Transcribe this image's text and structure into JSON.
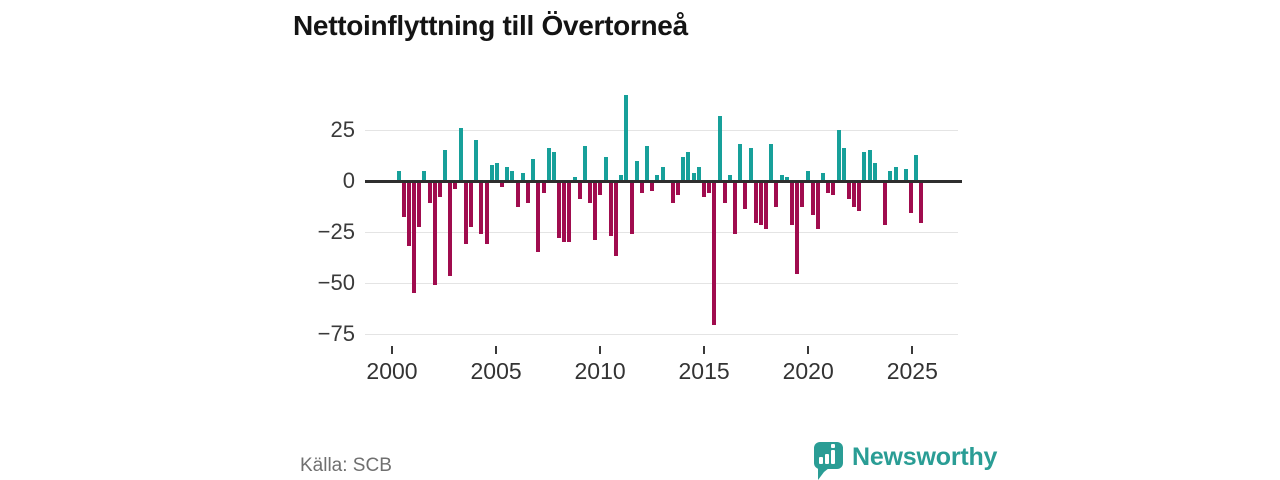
{
  "title": "Nettoinflyttning till Övertorneå",
  "source": "Källa: SCB",
  "branding": {
    "name": "Newsworthy"
  },
  "colors": {
    "positive": "#17a09a",
    "negative": "#a00c4e",
    "axis": "#2e2e2e",
    "grid": "#e4e4e4",
    "title": "#141414",
    "tick_label": "#3a3a3a",
    "source_text": "#6f6f6f",
    "brand": "#2a9d95"
  },
  "chart_data": {
    "type": "bar",
    "title": "Nettoinflyttning till Övertorneå",
    "xlabel": "",
    "ylabel": "",
    "ylim": [
      -75,
      45
    ],
    "yticks": [
      25,
      0,
      -25,
      -50,
      -75
    ],
    "xticks": [
      2000,
      2005,
      2010,
      2015,
      2020,
      2025
    ],
    "grid": true,
    "legend": false,
    "source": "Källa: SCB",
    "categories": [
      "2000 Q1",
      "2000 Q2",
      "2000 Q3",
      "2000 Q4",
      "2001 Q1",
      "2001 Q2",
      "2001 Q3",
      "2001 Q4",
      "2002 Q1",
      "2002 Q2",
      "2002 Q3",
      "2002 Q4",
      "2003 Q1",
      "2003 Q2",
      "2003 Q3",
      "2003 Q4",
      "2004 Q1",
      "2004 Q2",
      "2004 Q3",
      "2004 Q4",
      "2005 Q1",
      "2005 Q2",
      "2005 Q3",
      "2005 Q4",
      "2006 Q1",
      "2006 Q2",
      "2006 Q3",
      "2006 Q4",
      "2007 Q1",
      "2007 Q2",
      "2007 Q3",
      "2007 Q4",
      "2008 Q1",
      "2008 Q2",
      "2008 Q3",
      "2008 Q4",
      "2009 Q1",
      "2009 Q2",
      "2009 Q3",
      "2009 Q4",
      "2010 Q1",
      "2010 Q2",
      "2010 Q3",
      "2010 Q4",
      "2011 Q1",
      "2011 Q2",
      "2011 Q3",
      "2011 Q4",
      "2012 Q1",
      "2012 Q2",
      "2012 Q3",
      "2012 Q4",
      "2013 Q1",
      "2013 Q2",
      "2013 Q3",
      "2013 Q4",
      "2014 Q1",
      "2014 Q2",
      "2014 Q3",
      "2014 Q4",
      "2015 Q1",
      "2015 Q2",
      "2015 Q3",
      "2015 Q4",
      "2016 Q1",
      "2016 Q2",
      "2016 Q3",
      "2016 Q4",
      "2017 Q1",
      "2017 Q2",
      "2017 Q3",
      "2017 Q4",
      "2018 Q1",
      "2018 Q2",
      "2018 Q3",
      "2018 Q4",
      "2019 Q1",
      "2019 Q2",
      "2019 Q3",
      "2019 Q4",
      "2020 Q1",
      "2020 Q2",
      "2020 Q3",
      "2020 Q4",
      "2021 Q1",
      "2021 Q2",
      "2021 Q3",
      "2021 Q4",
      "2022 Q1",
      "2022 Q2",
      "2022 Q3",
      "2022 Q4",
      "2023 Q1",
      "2023 Q2",
      "2023 Q3",
      "2023 Q4",
      "2024 Q1",
      "2024 Q2",
      "2024 Q3",
      "2024 Q4",
      "2025 Q1",
      "2025 Q2"
    ],
    "values": [
      5,
      -17,
      -31,
      -54,
      -22,
      5,
      -10,
      -50,
      -7,
      15,
      -46,
      -3,
      26,
      -30,
      -22,
      20,
      -25,
      -30,
      8,
      9,
      -2,
      7,
      5,
      -12,
      4,
      -10,
      11,
      -34,
      -5,
      16,
      14,
      -27,
      -29,
      -29,
      2,
      -8,
      17,
      -10,
      -28,
      -6,
      12,
      -26,
      -36,
      3,
      42,
      -25,
      10,
      -5,
      17,
      -4,
      3,
      7,
      0,
      -10,
      -6,
      12,
      14,
      4,
      7,
      -7,
      -5,
      -70,
      32,
      -10,
      3,
      -25,
      18,
      -13,
      16,
      -20,
      -21,
      -23,
      18,
      -12,
      3,
      2,
      -21,
      -45,
      -12,
      5,
      -16,
      -23,
      4,
      -5,
      -6,
      25,
      16,
      -8,
      -12,
      -14,
      14,
      15,
      9,
      0,
      -21,
      5,
      7,
      0,
      6,
      -15,
      13,
      -20
    ]
  },
  "brand_icon_bars": [
    7,
    10,
    14
  ]
}
